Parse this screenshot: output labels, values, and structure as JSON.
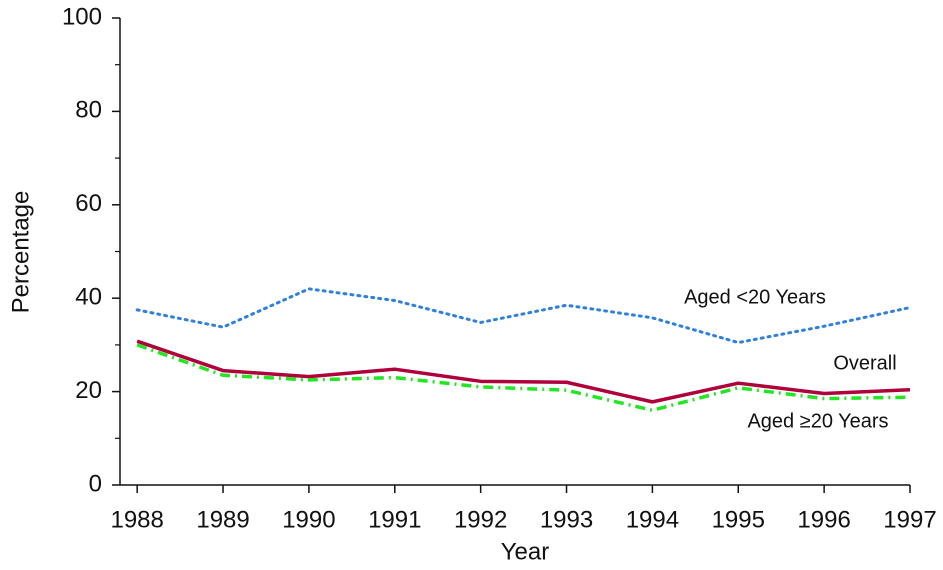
{
  "chart_data": {
    "type": "line",
    "x_label": "Year",
    "y_label": "Percentage",
    "x": [
      1988,
      1989,
      1990,
      1991,
      1992,
      1993,
      1994,
      1995,
      1996,
      1997
    ],
    "xlim": [
      1987.8,
      1997
    ],
    "xticks": [
      1988,
      1989,
      1990,
      1991,
      1992,
      1993,
      1994,
      1995,
      1996,
      1997
    ],
    "ylim": [
      0,
      100
    ],
    "yticks": [
      0,
      20,
      40,
      60,
      80,
      100
    ],
    "y_minor_ticks": [
      10,
      30,
      50,
      70,
      90
    ],
    "grid": false,
    "series": [
      {
        "name": "Aged <20 Years",
        "color": "#2f7fe0",
        "dash": "dotted",
        "values": [
          37.5,
          33.8,
          42,
          39.5,
          34.8,
          38.5,
          35.8,
          30.5,
          34,
          38
        ]
      },
      {
        "name": "Overall",
        "color": "#b0003a",
        "dash": "solid",
        "values": [
          30.8,
          24.5,
          23.2,
          24.8,
          22.2,
          22,
          17.8,
          21.8,
          19.6,
          20.4
        ]
      },
      {
        "name": "Aged ≥20 Years",
        "color": "#22e622",
        "dash": "dashdot",
        "values": [
          30,
          23.5,
          22.5,
          23,
          21,
          20.3,
          16,
          20.8,
          18.5,
          18.8
        ]
      }
    ]
  }
}
